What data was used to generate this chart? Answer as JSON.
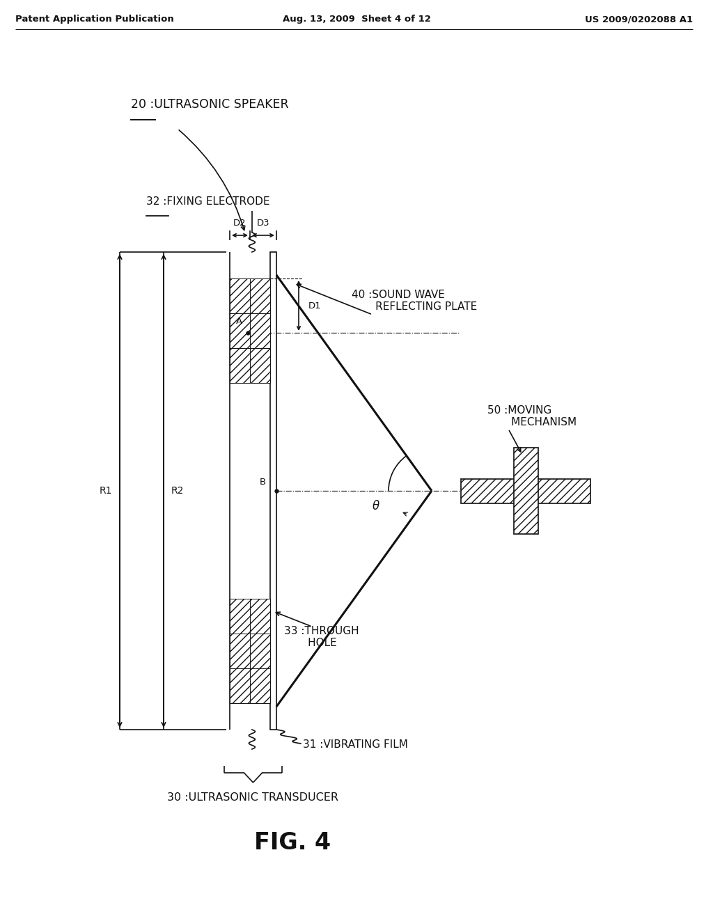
{
  "bg_color": "#ffffff",
  "header_left": "Patent Application Publication",
  "header_center": "Aug. 13, 2009  Sheet 4 of 12",
  "header_right": "US 2009/0202088 A1",
  "fig_label": "FIG. 4",
  "labels": {
    "20": "20 :ULTRASONIC SPEAKER",
    "30": "30 :ULTRASONIC TRANSDUCER",
    "31": "31 :VIBRATING FILM",
    "32": "32 :FIXING ELECTRODE",
    "33": "33 :THROUGH\n       HOLE",
    "40": "40 :SOUND WAVE\n       REFLECTING PLATE",
    "50": "50 :MOVING\n       MECHANISM"
  },
  "theta_label": "θ"
}
